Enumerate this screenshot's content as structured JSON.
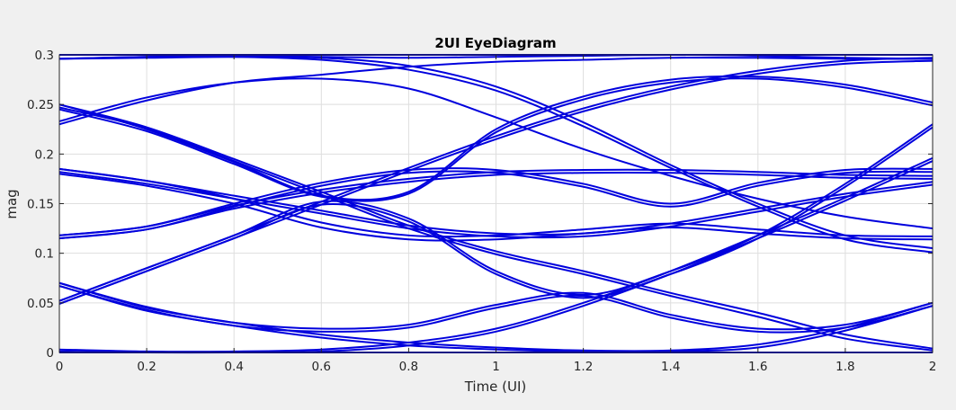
{
  "chart_data": {
    "type": "line",
    "title": "2UI EyeDiagram",
    "xlabel": "Time (UI)",
    "ylabel": "mag",
    "xlim": [
      0,
      2
    ],
    "ylim": [
      0,
      0.3
    ],
    "grid": true,
    "legend": "none",
    "line_color": "#0000dd",
    "background_color": "#f0f0f0",
    "axes_color": "#ffffff",
    "x_ticks": [
      0,
      0.2,
      0.4,
      0.6,
      0.8,
      1,
      1.2,
      1.4,
      1.6,
      1.8,
      2
    ],
    "x_tick_labels": [
      "0",
      "0.2",
      "0.4",
      "0.6",
      "0.8",
      "1",
      "1.2",
      "1.4",
      "1.6",
      "1.8",
      "2"
    ],
    "y_ticks": [
      0,
      0.05,
      0.1,
      0.15,
      0.2,
      0.25,
      0.3
    ],
    "y_tick_labels": [
      "0",
      "0.05",
      "0.1",
      "0.15",
      "0.2",
      "0.25",
      "0.3"
    ],
    "traces": [
      {
        "x": [
          0,
          0.4,
          0.6,
          0.8,
          1.0,
          1.2,
          1.4,
          1.6,
          1.8,
          2.0
        ],
        "y": [
          0.3,
          0.3,
          0.3,
          0.3,
          0.3,
          0.3,
          0.3,
          0.3,
          0.3,
          0.3
        ]
      },
      {
        "x": [
          0,
          0.2,
          0.4,
          0.6,
          0.8,
          1.0,
          1.2,
          1.4,
          1.6,
          1.8,
          2.0
        ],
        "y": [
          0.296,
          0.298,
          0.299,
          0.298,
          0.297,
          0.298,
          0.299,
          0.3,
          0.299,
          0.297,
          0.296
        ]
      },
      {
        "x": [
          0,
          0.2,
          0.4,
          0.6,
          0.8,
          1.0,
          1.2,
          1.4,
          1.6,
          1.8,
          2.0
        ],
        "y": [
          0.296,
          0.297,
          0.298,
          0.297,
          0.289,
          0.268,
          0.232,
          0.189,
          0.15,
          0.118,
          0.105
        ]
      },
      {
        "x": [
          0,
          0.2,
          0.4,
          0.6,
          0.8,
          1.0,
          1.2,
          1.4,
          1.6,
          1.8,
          2.0
        ],
        "y": [
          0.296,
          0.298,
          0.298,
          0.295,
          0.285,
          0.264,
          0.228,
          0.186,
          0.147,
          0.114,
          0.101
        ]
      },
      {
        "x": [
          0,
          0.2,
          0.4,
          0.6,
          0.8,
          1.0,
          1.2,
          1.4,
          1.6,
          1.8,
          2.0
        ],
        "y": [
          0.23,
          0.254,
          0.272,
          0.28,
          0.288,
          0.293,
          0.295,
          0.297,
          0.297,
          0.296,
          0.296
        ]
      },
      {
        "x": [
          0,
          0.2,
          0.4,
          0.6,
          0.8,
          1.0,
          1.2,
          1.4,
          1.6,
          1.8,
          2.0
        ],
        "y": [
          0.233,
          0.257,
          0.272,
          0.276,
          0.266,
          0.237,
          0.205,
          0.178,
          0.155,
          0.137,
          0.125
        ]
      },
      {
        "x": [
          0,
          0.2,
          0.4,
          0.6,
          0.8,
          1.0,
          1.2,
          1.4,
          1.6,
          1.8,
          2.0
        ],
        "y": [
          0.25,
          0.227,
          0.195,
          0.162,
          0.128,
          0.102,
          0.082,
          0.06,
          0.04,
          0.018,
          0.004
        ]
      },
      {
        "x": [
          0,
          0.2,
          0.4,
          0.6,
          0.8,
          1.0,
          1.2,
          1.4,
          1.6,
          1.8,
          2.0
        ],
        "y": [
          0.247,
          0.226,
          0.193,
          0.159,
          0.125,
          0.099,
          0.079,
          0.057,
          0.036,
          0.014,
          0.002
        ]
      },
      {
        "x": [
          0,
          0.2,
          0.4,
          0.6,
          0.8,
          1.0,
          1.2,
          1.4,
          1.6,
          1.8,
          2.0
        ],
        "y": [
          0.25,
          0.225,
          0.192,
          0.158,
          0.162,
          0.225,
          0.258,
          0.275,
          0.278,
          0.27,
          0.252
        ]
      },
      {
        "x": [
          0,
          0.2,
          0.4,
          0.6,
          0.8,
          1.0,
          1.2,
          1.4,
          1.6,
          1.8,
          2.0
        ],
        "y": [
          0.245,
          0.223,
          0.19,
          0.157,
          0.16,
          0.222,
          0.255,
          0.272,
          0.276,
          0.267,
          0.249
        ]
      },
      {
        "x": [
          0,
          0.2,
          0.4,
          0.6,
          0.8,
          1.0,
          1.2,
          1.4,
          1.6,
          1.8,
          2.0
        ],
        "y": [
          0.185,
          0.173,
          0.158,
          0.143,
          0.128,
          0.12,
          0.12,
          0.13,
          0.145,
          0.16,
          0.172
        ]
      },
      {
        "x": [
          0,
          0.2,
          0.4,
          0.6,
          0.8,
          1.0,
          1.2,
          1.4,
          1.6,
          1.8,
          2.0
        ],
        "y": [
          0.182,
          0.17,
          0.155,
          0.14,
          0.125,
          0.117,
          0.117,
          0.127,
          0.142,
          0.157,
          0.169
        ]
      },
      {
        "x": [
          0,
          0.2,
          0.4,
          0.6,
          0.8,
          1.0,
          1.2,
          1.4,
          1.6,
          1.8,
          2.0
        ],
        "y": [
          0.185,
          0.173,
          0.155,
          0.131,
          0.118,
          0.118,
          0.124,
          0.13,
          0.124,
          0.118,
          0.117
        ]
      },
      {
        "x": [
          0,
          0.2,
          0.4,
          0.6,
          0.8,
          1.0,
          1.2,
          1.4,
          1.6,
          1.8,
          2.0
        ],
        "y": [
          0.18,
          0.168,
          0.15,
          0.126,
          0.114,
          0.114,
          0.12,
          0.126,
          0.12,
          0.115,
          0.114
        ]
      },
      {
        "x": [
          0,
          0.2,
          0.4,
          0.6,
          0.8,
          1.0,
          1.2,
          1.4,
          1.6,
          1.8,
          2.0
        ],
        "y": [
          0.118,
          0.127,
          0.15,
          0.171,
          0.184,
          0.184,
          0.17,
          0.15,
          0.171,
          0.184,
          0.185
        ]
      },
      {
        "x": [
          0,
          0.2,
          0.4,
          0.6,
          0.8,
          1.0,
          1.2,
          1.4,
          1.6,
          1.8,
          2.0
        ],
        "y": [
          0.115,
          0.124,
          0.147,
          0.168,
          0.181,
          0.181,
          0.167,
          0.147,
          0.168,
          0.181,
          0.182
        ]
      },
      {
        "x": [
          0,
          0.2,
          0.4,
          0.6,
          0.8,
          1.0,
          1.2,
          1.4,
          1.6,
          1.8,
          2.0
        ],
        "y": [
          0.118,
          0.127,
          0.148,
          0.164,
          0.175,
          0.182,
          0.184,
          0.184,
          0.182,
          0.179,
          0.178
        ]
      },
      {
        "x": [
          0,
          0.2,
          0.4,
          0.6,
          0.8,
          1.0,
          1.2,
          1.4,
          1.6,
          1.8,
          2.0
        ],
        "y": [
          0.115,
          0.124,
          0.145,
          0.161,
          0.172,
          0.179,
          0.181,
          0.181,
          0.179,
          0.176,
          0.175
        ]
      },
      {
        "x": [
          0,
          0.2,
          0.4,
          0.6,
          0.8,
          1.0,
          1.2,
          1.4,
          1.6,
          1.8,
          2.0
        ],
        "y": [
          0.052,
          0.085,
          0.118,
          0.152,
          0.186,
          0.218,
          0.246,
          0.268,
          0.284,
          0.294,
          0.297
        ]
      },
      {
        "x": [
          0,
          0.2,
          0.4,
          0.6,
          0.8,
          1.0,
          1.2,
          1.4,
          1.6,
          1.8,
          2.0
        ],
        "y": [
          0.049,
          0.082,
          0.115,
          0.149,
          0.183,
          0.215,
          0.243,
          0.265,
          0.281,
          0.291,
          0.294
        ]
      },
      {
        "x": [
          0,
          0.2,
          0.4,
          0.6,
          0.8,
          1.0,
          1.2,
          1.4,
          1.6,
          1.8,
          2.0
        ],
        "y": [
          0.052,
          0.085,
          0.118,
          0.152,
          0.135,
          0.082,
          0.058,
          0.082,
          0.118,
          0.17,
          0.23
        ]
      },
      {
        "x": [
          0,
          0.2,
          0.4,
          0.6,
          0.8,
          1.0,
          1.2,
          1.4,
          1.6,
          1.8,
          2.0
        ],
        "y": [
          0.049,
          0.082,
          0.115,
          0.149,
          0.132,
          0.079,
          0.055,
          0.079,
          0.115,
          0.167,
          0.227
        ]
      },
      {
        "x": [
          0,
          0.2,
          0.4,
          0.6,
          0.8,
          1.0,
          1.2,
          1.4,
          1.6,
          1.8,
          2.0
        ],
        "y": [
          0.07,
          0.046,
          0.03,
          0.024,
          0.028,
          0.048,
          0.06,
          0.038,
          0.024,
          0.028,
          0.05
        ]
      },
      {
        "x": [
          0,
          0.2,
          0.4,
          0.6,
          0.8,
          1.0,
          1.2,
          1.4,
          1.6,
          1.8,
          2.0
        ],
        "y": [
          0.067,
          0.043,
          0.027,
          0.021,
          0.025,
          0.045,
          0.057,
          0.035,
          0.021,
          0.025,
          0.047
        ]
      },
      {
        "x": [
          0,
          0.2,
          0.4,
          0.6,
          0.8,
          1.0,
          1.2,
          1.4,
          1.6,
          1.8,
          2.0
        ],
        "y": [
          0.07,
          0.045,
          0.03,
          0.018,
          0.01,
          0.005,
          0.002,
          0.002,
          0.008,
          0.025,
          0.05
        ]
      },
      {
        "x": [
          0,
          0.2,
          0.4,
          0.6,
          0.8,
          1.0,
          1.2,
          1.4,
          1.6,
          1.8,
          2.0
        ],
        "y": [
          0.067,
          0.042,
          0.027,
          0.015,
          0.007,
          0.003,
          0.001,
          0.001,
          0.005,
          0.022,
          0.047
        ]
      },
      {
        "x": [
          0,
          0.2,
          0.4,
          0.6,
          0.8,
          1.0,
          1.2,
          1.4,
          1.6,
          1.8,
          2.0
        ],
        "y": [
          0.003,
          0.001,
          0.001,
          0.003,
          0.01,
          0.024,
          0.05,
          0.082,
          0.118,
          0.156,
          0.196
        ]
      },
      {
        "x": [
          0,
          0.2,
          0.4,
          0.6,
          0.8,
          1.0,
          1.2,
          1.4,
          1.6,
          1.8,
          2.0
        ],
        "y": [
          0.001,
          0.0,
          0.0,
          0.001,
          0.007,
          0.021,
          0.047,
          0.079,
          0.115,
          0.153,
          0.193
        ]
      },
      {
        "x": [
          0,
          0.4,
          0.8,
          1.2,
          1.6,
          2.0
        ],
        "y": [
          0.0,
          0.0,
          0.0,
          0.0,
          0.0,
          0.0
        ]
      }
    ]
  }
}
